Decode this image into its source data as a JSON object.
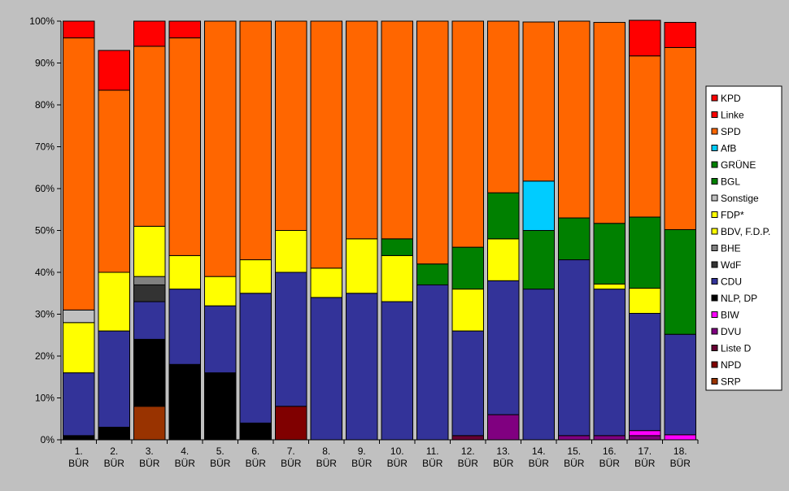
{
  "chart_data": {
    "type": "bar",
    "stacked": true,
    "percent": true,
    "categories": [
      "1.\nBÜR",
      "2.\nBÜR",
      "3.\nBÜR",
      "4.\nBÜR",
      "5.\nBÜR",
      "6.\nBÜR",
      "7.\nBÜR",
      "8.\nBÜR",
      "9.\nBÜR",
      "10.\nBÜR",
      "11.\nBÜR",
      "12.\nBÜR",
      "13.\nBÜR",
      "14.\nBÜR",
      "15.\nBÜR",
      "16.\nBÜR",
      "17.\nBÜR",
      "18.\nBÜR"
    ],
    "ylim": [
      0,
      100
    ],
    "yticks": [
      "0%",
      "10%",
      "20%",
      "30%",
      "40%",
      "50%",
      "60%",
      "70%",
      "80%",
      "90%",
      "100%"
    ],
    "legend_position": "right",
    "grid": false,
    "series": [
      {
        "name": "SRP",
        "color": "#993300",
        "values": [
          0,
          0,
          8,
          0,
          0,
          0,
          0,
          0,
          0,
          0,
          0,
          0,
          0,
          0,
          0,
          0,
          0,
          0
        ]
      },
      {
        "name": "NPD",
        "color": "#800000",
        "values": [
          0,
          0,
          0,
          0,
          0,
          0,
          8,
          0,
          0,
          0,
          0,
          0,
          0,
          0,
          0,
          0,
          0,
          0
        ]
      },
      {
        "name": "Liste D",
        "color": "#660033",
        "values": [
          0,
          0,
          0,
          0,
          0,
          0,
          0,
          0,
          0,
          0,
          0,
          1,
          0,
          0,
          0,
          0,
          0,
          0
        ]
      },
      {
        "name": "DVU",
        "color": "#800080",
        "values": [
          0,
          0,
          0,
          0,
          0,
          0,
          0,
          0,
          0,
          0,
          0,
          0,
          6,
          0,
          1,
          1,
          1,
          0
        ]
      },
      {
        "name": "BIW",
        "color": "#ff00ff",
        "values": [
          0,
          0,
          0,
          0,
          0,
          0,
          0,
          0,
          0,
          0,
          0,
          0,
          0,
          0,
          0,
          0,
          1.2,
          1.2
        ]
      },
      {
        "name": "NLP, DP",
        "color": "#000000",
        "values": [
          1,
          3,
          16,
          18,
          16,
          4,
          0,
          0,
          0,
          0,
          0,
          0,
          0,
          0,
          0,
          0,
          0,
          0
        ]
      },
      {
        "name": "CDU",
        "color": "#333399",
        "values": [
          15,
          23,
          9,
          18,
          16,
          31,
          32,
          34,
          35,
          33,
          37,
          25,
          32,
          36,
          42,
          35,
          28,
          24
        ]
      },
      {
        "name": "WdF",
        "color": "#333333",
        "values": [
          0,
          0,
          4,
          0,
          0,
          0,
          0,
          0,
          0,
          0,
          0,
          0,
          0,
          0,
          0,
          0,
          0,
          0
        ]
      },
      {
        "name": "BHE",
        "color": "#808080",
        "values": [
          0,
          0,
          2,
          0,
          0,
          0,
          0,
          0,
          0,
          0,
          0,
          0,
          0,
          0,
          0,
          0,
          0,
          0
        ]
      },
      {
        "name": "BDV, F.D.P.",
        "color": "#ffff00",
        "values": [
          12,
          14,
          0,
          0,
          0,
          0,
          0,
          0,
          0,
          0,
          0,
          0,
          0,
          0,
          0,
          0,
          0,
          0
        ]
      },
      {
        "name": "FDP*",
        "color": "#ffff00",
        "values": [
          0,
          0,
          12,
          8,
          7,
          8,
          10,
          7,
          13,
          11,
          0,
          10,
          10,
          0,
          0,
          1.2,
          6,
          0
        ]
      },
      {
        "name": "Sonstige",
        "color": "#c0c0c0",
        "values": [
          3,
          0,
          0,
          0,
          0,
          0,
          0,
          0,
          0,
          0,
          0,
          0,
          0,
          0,
          0,
          0,
          0,
          0
        ]
      },
      {
        "name": "BGL",
        "color": "#008000",
        "values": [
          0,
          0,
          0,
          0,
          0,
          0,
          0,
          0,
          0,
          4,
          5,
          10,
          11,
          14,
          10,
          14.5,
          17,
          25
        ]
      },
      {
        "name": "GRÜNE",
        "color": "#008000",
        "values": [
          0,
          0,
          0,
          0,
          0,
          0,
          0,
          0,
          0,
          0,
          0,
          0,
          0,
          0,
          0,
          0,
          0,
          0
        ]
      },
      {
        "name": "AfB",
        "color": "#00ccff",
        "values": [
          0,
          0,
          0,
          0,
          0,
          0,
          0,
          0,
          0,
          0,
          0,
          0,
          0,
          11.8,
          0,
          0,
          0,
          0
        ]
      },
      {
        "name": "SPD",
        "color": "#ff6600",
        "values": [
          65,
          43.5,
          43,
          52,
          61,
          57,
          50,
          59,
          52,
          52,
          58,
          54,
          41,
          38,
          47,
          48,
          38.5,
          43.5
        ]
      },
      {
        "name": "Linke",
        "color": "#ff0000",
        "values": [
          0,
          0,
          0,
          0,
          0,
          0,
          0,
          0,
          0,
          0,
          0,
          0,
          0,
          0,
          0,
          0,
          8.5,
          6
        ]
      },
      {
        "name": "KPD",
        "color": "#ff0000",
        "values": [
          4,
          9.5,
          6,
          4,
          0,
          0,
          0,
          0,
          0,
          0,
          0,
          0,
          0,
          0,
          0,
          0,
          0,
          0
        ]
      }
    ],
    "legend_order": [
      "KPD",
      "Linke",
      "SPD",
      "AfB",
      "GRÜNE",
      "BGL",
      "Sonstige",
      "FDP*",
      "BDV, F.D.P.",
      "BHE",
      "WdF",
      "CDU",
      "NLP, DP",
      "BIW",
      "DVU",
      "Liste D",
      "NPD",
      "SRP"
    ]
  }
}
